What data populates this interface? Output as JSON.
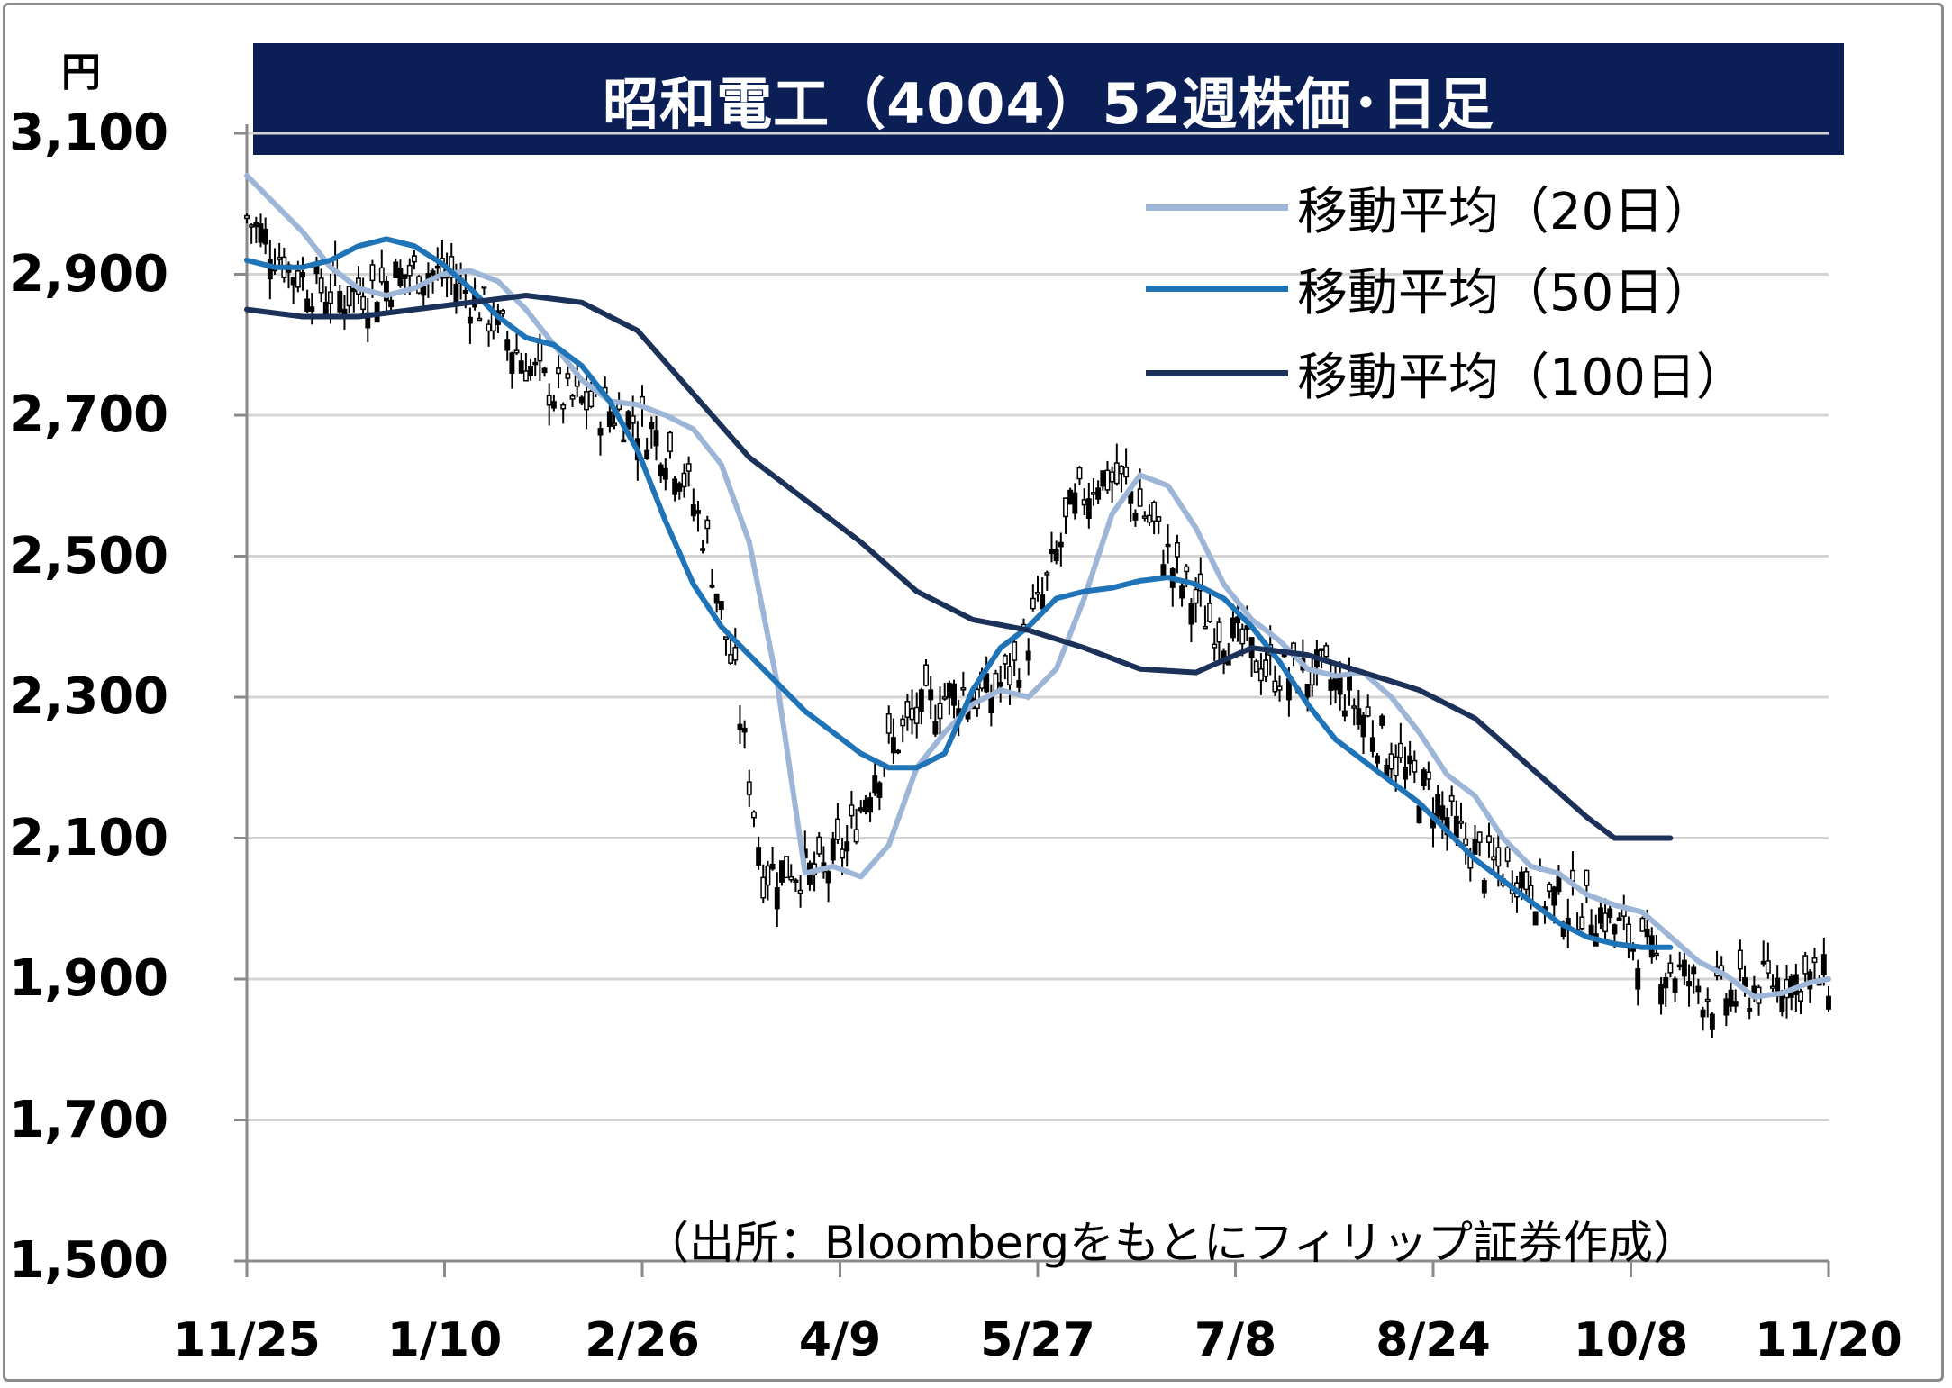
{
  "chart_data": {
    "type": "line",
    "title": "昭和電工（4004）52週株価･日足",
    "unit": "円",
    "source": "（出所：Bloombergをもとにフィリップ証券作成）",
    "ylim": [
      1500,
      3100
    ],
    "yticks": [
      "3,100",
      "2,900",
      "2,700",
      "2,500",
      "2,300",
      "2,100",
      "1,900",
      "1,700",
      "1,500"
    ],
    "xticks": [
      "11/25",
      "1/10",
      "2/26",
      "4/9",
      "5/27",
      "7/8",
      "8/24",
      "10/8",
      "11/20"
    ],
    "grid": true,
    "legend_position": "top-right",
    "series": [
      {
        "name": "移動平均（20日）",
        "color": "#9db5d6",
        "points": [
          [
            0,
            3040
          ],
          [
            6,
            3000
          ],
          [
            12,
            2960
          ],
          [
            18,
            2910
          ],
          [
            24,
            2880
          ],
          [
            30,
            2870
          ],
          [
            36,
            2880
          ],
          [
            42,
            2900
          ],
          [
            48,
            2905
          ],
          [
            54,
            2890
          ],
          [
            60,
            2850
          ],
          [
            66,
            2800
          ],
          [
            72,
            2750
          ],
          [
            78,
            2720
          ],
          [
            84,
            2715
          ],
          [
            90,
            2700
          ],
          [
            96,
            2680
          ],
          [
            102,
            2630
          ],
          [
            108,
            2520
          ],
          [
            114,
            2320
          ],
          [
            120,
            2050
          ],
          [
            126,
            2060
          ],
          [
            132,
            2045
          ],
          [
            138,
            2090
          ],
          [
            144,
            2200
          ],
          [
            150,
            2250
          ],
          [
            156,
            2290
          ],
          [
            162,
            2310
          ],
          [
            168,
            2300
          ],
          [
            174,
            2340
          ],
          [
            180,
            2440
          ],
          [
            186,
            2560
          ],
          [
            192,
            2615
          ],
          [
            198,
            2600
          ],
          [
            204,
            2540
          ],
          [
            210,
            2460
          ],
          [
            216,
            2410
          ],
          [
            222,
            2380
          ],
          [
            228,
            2340
          ],
          [
            234,
            2330
          ],
          [
            240,
            2335
          ],
          [
            246,
            2300
          ],
          [
            252,
            2250
          ],
          [
            258,
            2190
          ],
          [
            264,
            2160
          ],
          [
            270,
            2100
          ],
          [
            276,
            2060
          ],
          [
            282,
            2050
          ],
          [
            288,
            2020
          ],
          [
            294,
            2005
          ],
          [
            300,
            1995
          ],
          [
            306,
            1960
          ],
          [
            312,
            1925
          ],
          [
            318,
            1905
          ],
          [
            324,
            1875
          ],
          [
            330,
            1880
          ],
          [
            336,
            1895
          ],
          [
            340,
            1900
          ]
        ]
      },
      {
        "name": "移動平均（50日）",
        "color": "#1f73b7",
        "points": [
          [
            0,
            2920
          ],
          [
            6,
            2910
          ],
          [
            12,
            2910
          ],
          [
            18,
            2920
          ],
          [
            24,
            2940
          ],
          [
            30,
            2950
          ],
          [
            36,
            2940
          ],
          [
            42,
            2915
          ],
          [
            48,
            2880
          ],
          [
            54,
            2840
          ],
          [
            60,
            2810
          ],
          [
            66,
            2800
          ],
          [
            72,
            2770
          ],
          [
            78,
            2720
          ],
          [
            84,
            2650
          ],
          [
            90,
            2550
          ],
          [
            96,
            2460
          ],
          [
            102,
            2400
          ],
          [
            108,
            2360
          ],
          [
            114,
            2320
          ],
          [
            120,
            2280
          ],
          [
            126,
            2250
          ],
          [
            132,
            2220
          ],
          [
            138,
            2200
          ],
          [
            144,
            2200
          ],
          [
            150,
            2220
          ],
          [
            156,
            2310
          ],
          [
            162,
            2370
          ],
          [
            168,
            2400
          ],
          [
            174,
            2440
          ],
          [
            180,
            2450
          ],
          [
            186,
            2455
          ],
          [
            192,
            2465
          ],
          [
            198,
            2470
          ],
          [
            204,
            2460
          ],
          [
            210,
            2440
          ],
          [
            216,
            2400
          ],
          [
            222,
            2350
          ],
          [
            228,
            2290
          ],
          [
            234,
            2240
          ],
          [
            240,
            2210
          ],
          [
            246,
            2180
          ],
          [
            252,
            2150
          ],
          [
            258,
            2110
          ],
          [
            264,
            2070
          ],
          [
            270,
            2040
          ],
          [
            276,
            2010
          ],
          [
            282,
            1980
          ],
          [
            288,
            1960
          ],
          [
            294,
            1950
          ],
          [
            300,
            1945
          ],
          [
            306,
            1945
          ]
        ]
      },
      {
        "name": "移動平均（100日）",
        "color": "#1b3159",
        "points": [
          [
            0,
            2850
          ],
          [
            12,
            2840
          ],
          [
            24,
            2840
          ],
          [
            36,
            2850
          ],
          [
            48,
            2860
          ],
          [
            60,
            2870
          ],
          [
            72,
            2860
          ],
          [
            84,
            2820
          ],
          [
            96,
            2730
          ],
          [
            108,
            2640
          ],
          [
            120,
            2580
          ],
          [
            132,
            2520
          ],
          [
            144,
            2450
          ],
          [
            156,
            2410
          ],
          [
            168,
            2395
          ],
          [
            180,
            2370
          ],
          [
            192,
            2340
          ],
          [
            204,
            2335
          ],
          [
            216,
            2370
          ],
          [
            228,
            2360
          ],
          [
            240,
            2335
          ],
          [
            252,
            2310
          ],
          [
            264,
            2270
          ],
          [
            276,
            2200
          ],
          [
            288,
            2130
          ],
          [
            294,
            2100
          ],
          [
            306,
            2100
          ]
        ]
      }
    ]
  }
}
